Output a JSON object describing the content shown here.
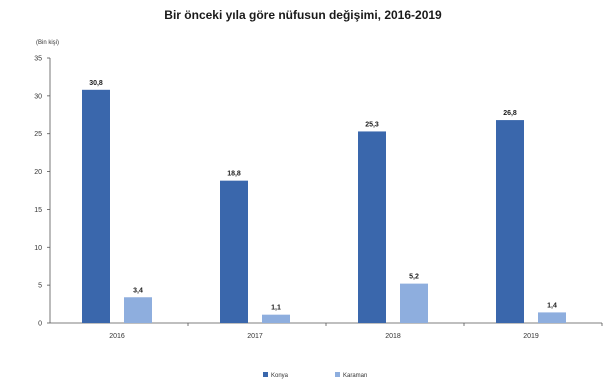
{
  "chart_data": {
    "type": "bar",
    "title": "Bir önceki yıla göre nüfusun değişimi, 2016-2019",
    "subtitle": "",
    "unit_label": "(Bin kişi)",
    "categories": [
      "2016",
      "2017",
      "2018",
      "2019"
    ],
    "series": [
      {
        "name": "Konya",
        "values": [
          30.8,
          18.8,
          25.3,
          26.8
        ],
        "labels": [
          "30,8",
          "18,8",
          "25,3",
          "26,8"
        ],
        "color": "#3a67ac"
      },
      {
        "name": "Karaman",
        "values": [
          3.4,
          1.1,
          5.2,
          1.4
        ],
        "labels": [
          "3,4",
          "1,1",
          "5,2",
          "1,4"
        ],
        "color": "#8eaede"
      }
    ],
    "ylim": [
      0,
      35
    ],
    "yticks": [
      "0",
      "5",
      "10",
      "15",
      "20",
      "25",
      "30",
      "35"
    ],
    "grid": false,
    "legend": "bottom-center"
  }
}
